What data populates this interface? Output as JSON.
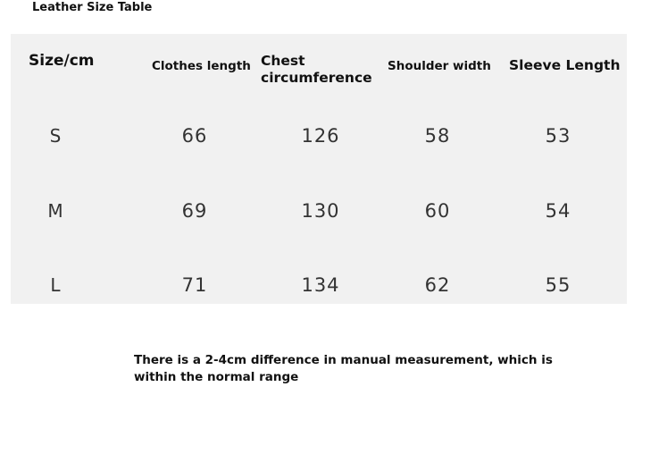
{
  "header": {
    "title": "Leather Size Table"
  },
  "table": {
    "columns": [
      "Size/cm",
      "Clothes length",
      "Chest circumference",
      "Shoulder width",
      "Sleeve Length"
    ],
    "rows": [
      [
        "S",
        66,
        126,
        58,
        53
      ],
      [
        "M",
        69,
        130,
        60,
        54
      ],
      [
        "L",
        71,
        134,
        62,
        55
      ]
    ]
  },
  "note": "There is a 2-4cm difference in manual measurement, which is within the normal range"
}
